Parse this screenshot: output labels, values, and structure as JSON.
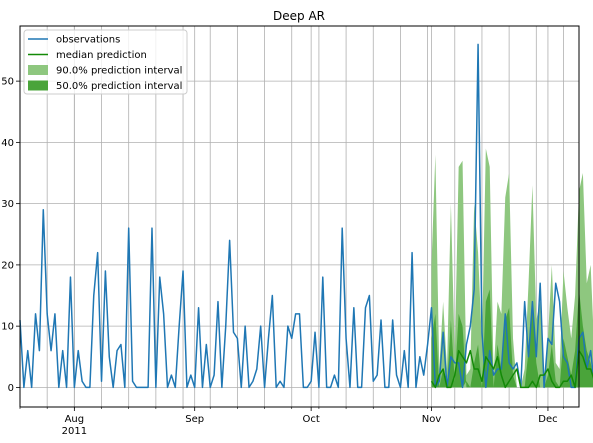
{
  "chart_data": {
    "type": "line",
    "title": "Deep AR",
    "xlabel": "",
    "ylabel": "",
    "grid": true,
    "legend_position": "top-left",
    "x_range": [
      "2011-07-18",
      "2011-12-09"
    ],
    "ylim": [
      -3.2,
      59
    ],
    "yticks": [
      0,
      10,
      20,
      30,
      40,
      50
    ],
    "xticks": [
      {
        "date": "2011-08-01",
        "label": "Aug",
        "sublabel": "2011"
      },
      {
        "date": "2011-09-01",
        "label": "Sep",
        "sublabel": ""
      },
      {
        "date": "2011-10-01",
        "label": "Oct",
        "sublabel": ""
      },
      {
        "date": "2011-11-01",
        "label": "Nov",
        "sublabel": ""
      },
      {
        "date": "2011-12-01",
        "label": "Dec",
        "sublabel": ""
      }
    ],
    "legend": [
      {
        "label": "observations",
        "kind": "line",
        "color": "#1f77b4"
      },
      {
        "label": "median prediction",
        "kind": "line",
        "color": "#138a07"
      },
      {
        "label": "90.0% prediction interval",
        "kind": "patch",
        "color": "#8ec77f"
      },
      {
        "label": "50.0% prediction interval",
        "kind": "patch",
        "color": "#4aa43a"
      }
    ],
    "colors": {
      "observations": "#1f77b4",
      "median": "#138a07",
      "interval90": "#8ec77f",
      "interval50": "#4aa43a",
      "grid": "#b0b0b0"
    },
    "observations": {
      "start": "2011-07-18",
      "values": [
        11,
        0,
        6,
        0,
        12,
        6,
        29,
        12,
        6,
        12,
        0,
        6,
        0,
        18,
        0,
        6,
        1,
        0,
        0,
        15,
        22,
        1,
        19,
        5,
        0,
        6,
        7,
        0,
        26,
        1,
        0,
        0,
        0,
        0,
        26,
        0,
        18,
        12,
        0,
        2,
        0,
        10,
        19,
        0,
        2,
        0,
        13,
        0,
        7,
        0,
        2,
        14,
        0,
        10,
        24,
        9,
        8,
        0,
        10,
        0,
        1,
        3,
        10,
        0,
        8,
        15,
        0,
        1,
        0,
        10,
        8,
        12,
        12,
        0,
        0,
        1,
        9,
        0,
        18,
        0,
        0,
        2,
        0,
        26,
        8,
        0,
        13,
        0,
        0,
        13,
        15,
        1,
        2,
        11,
        0,
        0,
        11,
        2,
        0,
        6,
        0,
        22,
        0,
        5,
        2,
        7,
        13,
        0,
        1,
        9,
        0,
        5,
        4,
        4,
        0,
        7,
        10,
        16,
        56,
        9,
        0,
        6,
        2,
        3,
        3,
        12,
        4,
        3,
        4,
        0,
        14,
        5,
        14,
        5,
        17,
        0,
        8,
        7,
        17,
        14,
        5,
        4,
        0,
        0,
        8,
        9,
        3,
        6,
        0
      ]
    },
    "forecast": {
      "start": "2011-11-01",
      "median": [
        1,
        0,
        2,
        3,
        0,
        0,
        2,
        6,
        5,
        4,
        6,
        3,
        3,
        1,
        5,
        4,
        3,
        5,
        2,
        0,
        1,
        2,
        3,
        0,
        0,
        0,
        1,
        0,
        2,
        2,
        3,
        1,
        0,
        0,
        1,
        1,
        2,
        0,
        6,
        5,
        3,
        3,
        1
      ],
      "lo90": [
        0,
        0,
        0,
        0,
        0,
        0,
        0,
        0,
        0,
        0,
        0,
        0,
        0,
        0,
        0,
        0,
        0,
        0,
        0,
        0,
        0,
        0,
        0,
        0,
        0,
        0,
        0,
        0,
        0,
        0,
        0,
        0,
        0,
        0,
        0,
        0,
        0,
        0,
        0,
        0,
        0,
        0,
        0
      ],
      "hi90": [
        20,
        38,
        3,
        14,
        3,
        30,
        5,
        36,
        37,
        2,
        3,
        30,
        22,
        7,
        39,
        36,
        2,
        14,
        12,
        31,
        35,
        8,
        0,
        0,
        3,
        17,
        33,
        11,
        14,
        1,
        8,
        20,
        4,
        3,
        19,
        13,
        8,
        15,
        32,
        35,
        17,
        20,
        5
      ],
      "lo50": [
        0,
        0,
        0,
        0,
        0,
        0,
        0,
        0,
        0,
        1,
        0,
        0,
        0,
        0,
        0,
        0,
        0,
        0,
        0,
        0,
        0,
        0,
        0,
        0,
        0,
        0,
        0,
        0,
        0,
        0,
        0,
        0,
        0,
        0,
        0,
        0,
        0,
        0,
        0,
        0,
        0,
        0,
        0
      ],
      "hi50": [
        8,
        12,
        0,
        3,
        0,
        11,
        1,
        12,
        10,
        0,
        0,
        4,
        7,
        0,
        14,
        16,
        0,
        7,
        3,
        11,
        13,
        2,
        0,
        0,
        0,
        6,
        14,
        4,
        0,
        0,
        2,
        7,
        1,
        0,
        8,
        5,
        2,
        6,
        16,
        10,
        6,
        4,
        1
      ]
    }
  }
}
